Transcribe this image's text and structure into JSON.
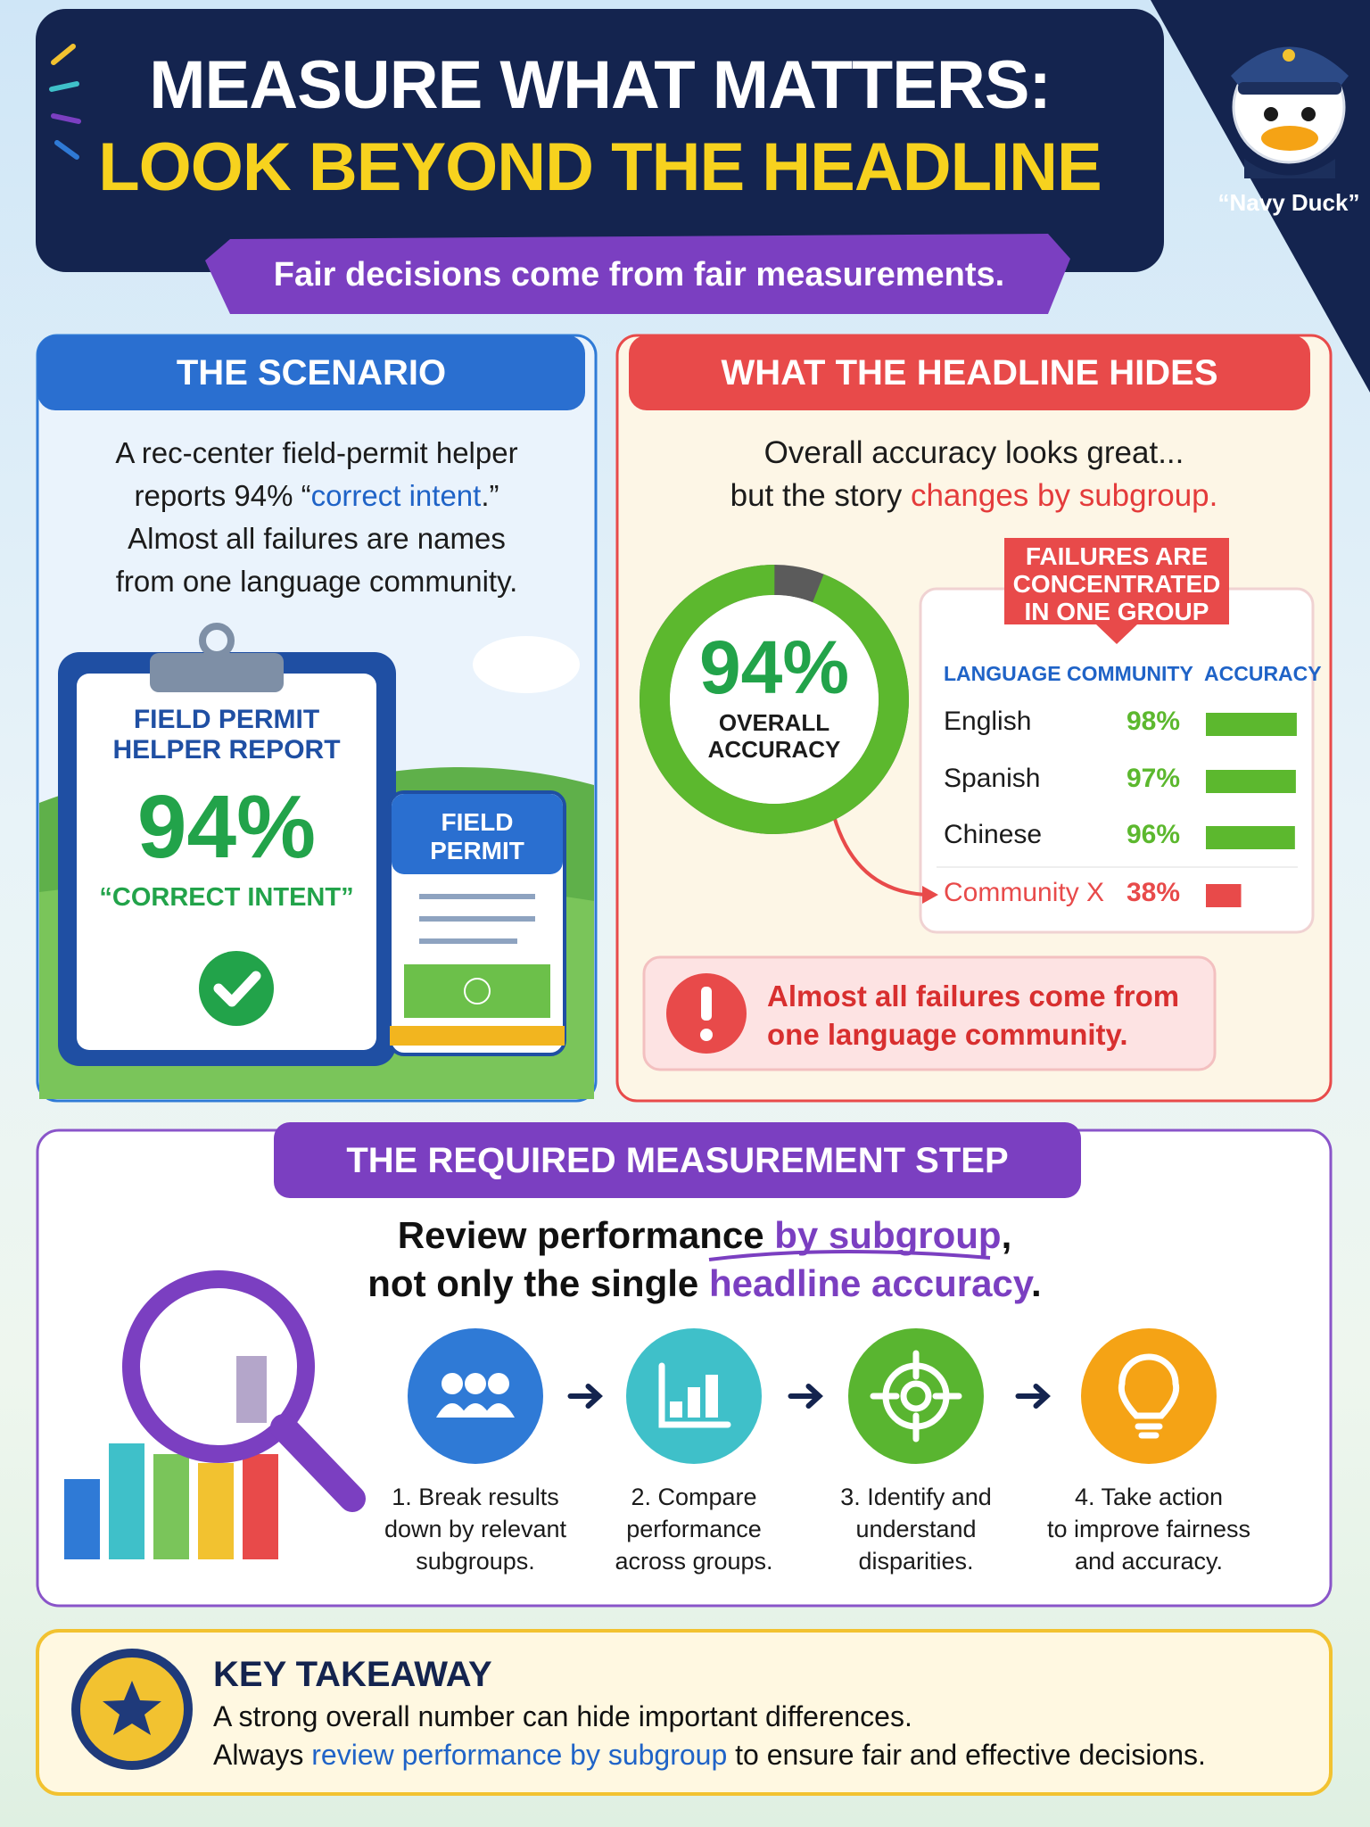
{
  "header": {
    "title_line1": "MEASURE WHAT MATTERS:",
    "title_line2": "LOOK BEYOND THE HEADLINE",
    "subtitle": "Fair decisions come from fair measurements.",
    "mascot": "“Navy Duck”"
  },
  "scenario": {
    "heading": "THE SCENARIO",
    "lines": [
      [
        "A rec-center field-permit helper"
      ],
      [
        "reports 94% “",
        "correct intent",
        ".”"
      ],
      [
        "Almost all failures are names"
      ],
      [
        "from one language community."
      ]
    ],
    "report": {
      "title_lines": [
        "FIELD PERMIT",
        "HELPER REPORT"
      ],
      "value": "94%",
      "caption": "“CORRECT INTENT”"
    },
    "permit_lines": [
      "FIELD",
      "PERMIT"
    ]
  },
  "headline": {
    "heading": "WHAT THE HEADLINE HIDES",
    "lines": [
      [
        "Overall accuracy looks great..."
      ],
      [
        "but the story ",
        "changes by subgroup."
      ]
    ],
    "donut": {
      "value": 94,
      "value_label": "94%",
      "label_lines": [
        "OVERALL",
        "ACCURACY"
      ],
      "color": "#5cb82e"
    },
    "callout_lines": [
      "FAILURES ARE",
      "CONCENTRATED",
      "IN ONE GROUP"
    ],
    "table": {
      "columns": [
        "LANGUAGE COMMUNITY",
        "ACCURACY"
      ],
      "rows": [
        {
          "group": "English",
          "value": 98,
          "value_label": "98%",
          "color": "#5cb82e"
        },
        {
          "group": "Spanish",
          "value": 97,
          "value_label": "97%",
          "color": "#5cb82e"
        },
        {
          "group": "Chinese",
          "value": 96,
          "value_label": "96%",
          "color": "#5cb82e"
        },
        {
          "group": "Community X",
          "value": 38,
          "value_label": "38%",
          "color": "#e84a4a"
        }
      ]
    },
    "warning_lines": [
      "Almost all failures come from",
      "one language community."
    ]
  },
  "measurement": {
    "heading": "THE REQUIRED MEASUREMENT STEP",
    "lines": [
      [
        "Review performance ",
        "by subgroup",
        ","
      ],
      [
        "not only the single ",
        "headline accuracy",
        "."
      ]
    ],
    "steps": [
      {
        "lines": [
          "1. Break results",
          "down by relevant",
          "subgroups."
        ],
        "color": "#2f7ad6"
      },
      {
        "lines": [
          "2. Compare",
          "performance",
          "across groups."
        ],
        "color": "#3fc0c9"
      },
      {
        "lines": [
          "3. Identify and",
          "understand",
          "disparities."
        ],
        "color": "#59b530"
      },
      {
        "lines": [
          "4. Take action",
          "to improve fairness",
          "and accuracy."
        ],
        "color": "#f5a315"
      }
    ]
  },
  "takeaway": {
    "title": "KEY TAKEAWAY",
    "lines": [
      [
        "A strong overall number can hide important differences."
      ],
      [
        "Always ",
        "review performance by subgroup",
        " to ensure fair and effective decisions."
      ]
    ]
  }
}
